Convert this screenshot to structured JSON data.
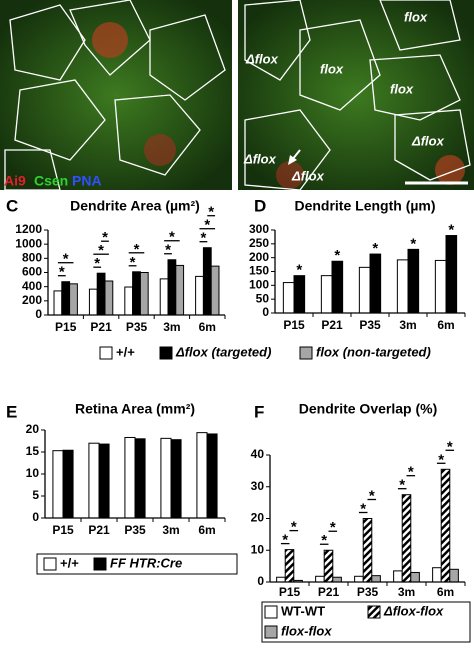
{
  "images": [
    {
      "labels": [
        {
          "text": "Ai9",
          "color": "#e0202a"
        },
        {
          "text": "Csen",
          "color": "#2fd12f"
        },
        {
          "text": "PNA",
          "color": "#3050ff"
        }
      ]
    },
    {
      "labels": [
        {
          "text": "flox"
        },
        {
          "text": "Δflox"
        },
        {
          "text": "flox"
        },
        {
          "text": "flox"
        },
        {
          "text": "Δflox"
        },
        {
          "text": "Δflox"
        },
        {
          "text": "Δflox"
        }
      ]
    }
  ],
  "chart_data": [
    {
      "type": "bar",
      "panel": "C",
      "title": "Dendrite Area (µm²)",
      "categories": [
        "P15",
        "P21",
        "P35",
        "3m",
        "6m"
      ],
      "series": [
        {
          "name": "+/+",
          "color": "#ffffff",
          "values": [
            340,
            365,
            395,
            510,
            545
          ]
        },
        {
          "name": "Δflox (targeted)",
          "color": "#000000",
          "values": [
            470,
            590,
            610,
            780,
            950
          ]
        },
        {
          "name": "flox (non-targeted)",
          "color": "#a6a6a6",
          "values": [
            440,
            480,
            600,
            700,
            690
          ]
        }
      ],
      "ylim": [
        0,
        1200
      ],
      "yticks": [
        0,
        200,
        400,
        600,
        800,
        1000,
        1200
      ],
      "legend": "bottom",
      "significance": {
        "marker": "*",
        "brackets": true,
        "comparisons": [
          [
            [
              0,
              1
            ],
            [
              0,
              2
            ]
          ],
          [
            [
              0,
              1
            ],
            [
              0,
              2
            ],
            [
              1,
              2
            ]
          ],
          [
            [
              0,
              1
            ],
            [
              0,
              2
            ]
          ],
          [
            [
              0,
              1
            ],
            [
              0,
              2
            ]
          ],
          [
            [
              0,
              1
            ],
            [
              0,
              2
            ],
            [
              1,
              2
            ]
          ]
        ]
      }
    },
    {
      "type": "bar",
      "panel": "D",
      "title": "Dendrite Length (µm)",
      "categories": [
        "P15",
        "P21",
        "P35",
        "3m",
        "6m"
      ],
      "series": [
        {
          "color": "#ffffff",
          "values": [
            110,
            135,
            165,
            192,
            190
          ]
        },
        {
          "color": "#000000",
          "values": [
            135,
            187,
            213,
            230,
            280
          ]
        }
      ],
      "ylim": [
        0,
        300
      ],
      "yticks": [
        0,
        50,
        100,
        150,
        200,
        250,
        300
      ],
      "legend": false,
      "significance": {
        "marker": "*",
        "brackets": false,
        "comparisons": [
          [
            [
              0,
              1
            ]
          ],
          [
            [
              0,
              1
            ]
          ],
          [
            [
              0,
              1
            ]
          ],
          [
            [
              0,
              1
            ]
          ],
          [
            [
              0,
              1
            ]
          ]
        ]
      }
    },
    {
      "type": "bar",
      "panel": "E",
      "title": "Retina Area (mm²)",
      "categories": [
        "P15",
        "P21",
        "P35",
        "3m",
        "6m"
      ],
      "series": [
        {
          "name": "+/+",
          "color": "#ffffff",
          "values": [
            15.3,
            17.0,
            18.3,
            18.1,
            19.4
          ]
        },
        {
          "name": "FF HTR:Cre",
          "color": "#000000",
          "values": [
            15.4,
            16.8,
            18.0,
            17.8,
            19.1
          ]
        }
      ],
      "ylim": [
        0,
        20
      ],
      "yticks": [
        0,
        5,
        10,
        15,
        20
      ],
      "legend": "bottom"
    },
    {
      "type": "bar",
      "panel": "F",
      "title": "Dendrite Overlap (%)",
      "categories": [
        "P15",
        "P21",
        "P35",
        "3m",
        "6m"
      ],
      "series": [
        {
          "name": "WT-WT",
          "color": "#ffffff",
          "values": [
            1.5,
            1.8,
            1.8,
            3.5,
            4.5
          ]
        },
        {
          "name": "Δflox-flox",
          "color": "#000000",
          "pattern": "hatch",
          "values": [
            10.2,
            10.0,
            20.0,
            27.5,
            35.5
          ]
        },
        {
          "name": "flox-flox",
          "color": "#a6a6a6",
          "values": [
            0.5,
            1.5,
            2.0,
            3.0,
            4.0
          ]
        }
      ],
      "ylim": [
        0,
        40
      ],
      "yticks": [
        0,
        10,
        20,
        30,
        40
      ],
      "legend": "bottom",
      "significance": {
        "marker": "*",
        "brackets": true,
        "comparisons": [
          [
            [
              0,
              1
            ],
            [
              1,
              2
            ]
          ],
          [
            [
              0,
              1
            ],
            [
              1,
              2
            ]
          ],
          [
            [
              0,
              1
            ],
            [
              1,
              2
            ]
          ],
          [
            [
              0,
              1
            ],
            [
              1,
              2
            ]
          ],
          [
            [
              0,
              1
            ],
            [
              1,
              2
            ]
          ]
        ]
      }
    }
  ]
}
